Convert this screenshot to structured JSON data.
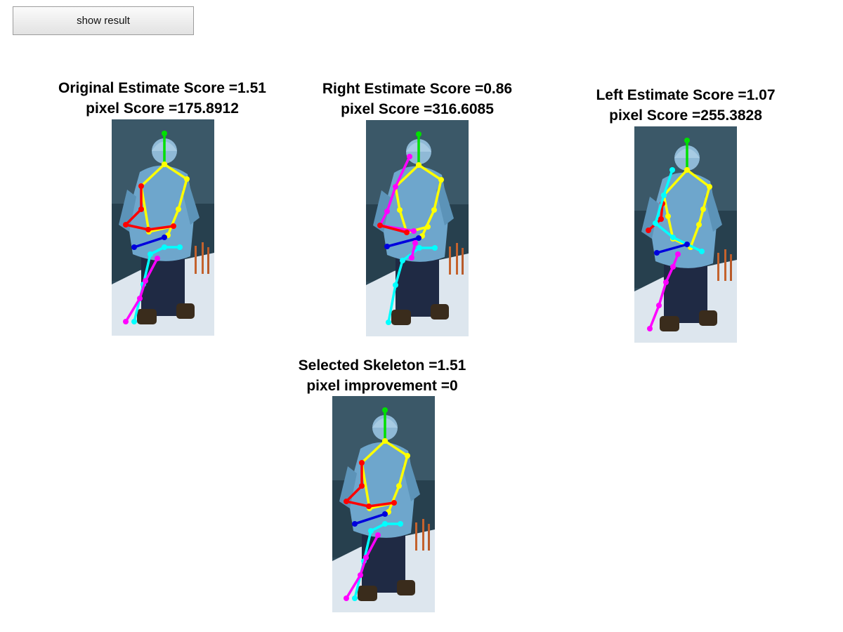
{
  "toolbar": {
    "show_result_label": "show result"
  },
  "panels": [
    {
      "id": "original",
      "title_line1": "Original Estimate Score =1.51",
      "title_line2": "pixel Score =175.8912",
      "skeleton": "front-pose"
    },
    {
      "id": "right",
      "title_line1": "Right Estimate Score =0.86",
      "title_line2": "pixel Score =316.6085",
      "skeleton": "right-pose"
    },
    {
      "id": "left",
      "title_line1": "Left Estimate Score =1.07",
      "title_line2": "pixel Score =255.3828",
      "skeleton": "left-pose"
    },
    {
      "id": "selected",
      "title_line1": "Selected Skeleton =1.51",
      "title_line2": "pixel improvement =0",
      "skeleton": "front-pose"
    }
  ],
  "colors": {
    "head": "#00e000",
    "torso": "#ffff00",
    "right_arm": "#ff0000",
    "left_arm": "#0000dd",
    "right_leg": "#00ffff",
    "left_leg": "#ff00ff",
    "sky": "#2e4a5a",
    "jacket": "#6ea6cc",
    "snow": "#dde6ee",
    "pants": "#1f2a44"
  }
}
